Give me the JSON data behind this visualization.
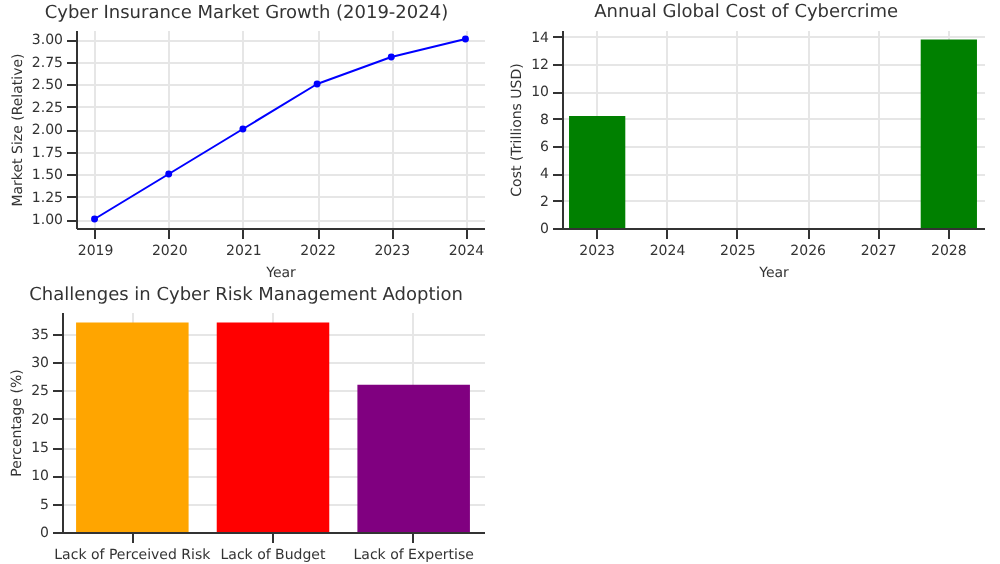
{
  "chart_data": [
    {
      "type": "line",
      "title": "Cyber Insurance Market Growth (2019-2024)",
      "xlabel": "Year",
      "ylabel": "Market Size (Relative)",
      "x": [
        2019,
        2020,
        2021,
        2022,
        2023,
        2024
      ],
      "series": [
        {
          "color": "#0000ff",
          "values": [
            1.0,
            1.5,
            2.0,
            2.5,
            2.8,
            3.0
          ]
        }
      ],
      "xlim": [
        2018.75,
        2024.25
      ],
      "xticks": [
        2019,
        2020,
        2021,
        2022,
        2023,
        2024
      ],
      "ylim": [
        0.9,
        3.1
      ],
      "yticks": [
        {
          "value": 1,
          "label": "1.00"
        },
        {
          "value": 1.25,
          "label": "1.25"
        },
        {
          "value": 1.5,
          "label": "1.50"
        },
        {
          "value": 1.75,
          "label": "1.75"
        },
        {
          "value": 2,
          "label": "2.00"
        },
        {
          "value": 2.25,
          "label": "2.25"
        },
        {
          "value": 2.5,
          "label": "2.50"
        },
        {
          "value": 2.75,
          "label": "2.75"
        },
        {
          "value": 3,
          "label": "3.00"
        }
      ],
      "grid": true,
      "marker": "circle",
      "line_style": "solid"
    },
    {
      "type": "bar",
      "title": "Annual Global Cost of Cybercrime",
      "xlabel": "Year",
      "ylabel": "Cost (Trillions USD)",
      "categories": [
        "2023",
        "2024",
        "2025",
        "2026",
        "2027",
        "2028"
      ],
      "values": [
        8.2,
        null,
        null,
        null,
        null,
        13.8
      ],
      "color": "#008000",
      "ylim": [
        0,
        14.5
      ],
      "yticks": [
        0,
        2,
        4,
        6,
        8,
        10,
        12,
        14
      ],
      "grid": true
    },
    {
      "type": "bar",
      "title": "Challenges in Cyber Risk Management Adoption",
      "ylabel": "Percentage (%)",
      "categories": [
        "Lack of Perceived Risk",
        "Lack of Budget",
        "Lack of Expertise"
      ],
      "values": [
        37,
        37,
        26
      ],
      "colors": [
        "#ffa500",
        "#ff0000",
        "#800080"
      ],
      "ylim": [
        0,
        38.85
      ],
      "yticks": [
        0,
        5,
        10,
        15,
        20,
        25,
        30,
        35
      ],
      "grid": true
    }
  ]
}
